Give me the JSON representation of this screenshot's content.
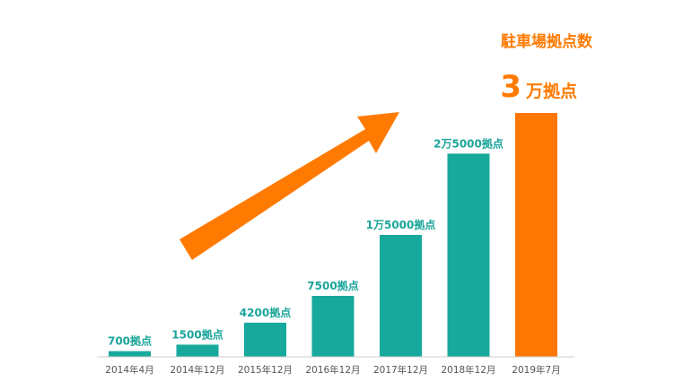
{
  "chart_data": {
    "type": "bar",
    "title": "駐車場拠点数",
    "highlight": {
      "number": "3",
      "unit": "万拠点"
    },
    "categories": [
      "2014年4月",
      "2014年12月",
      "2015年12月",
      "2016年12月",
      "2017年12月",
      "2018年12月",
      "2019年7月"
    ],
    "values": [
      700,
      1500,
      4200,
      7500,
      15000,
      25000,
      30000
    ],
    "data_labels": [
      "700拠点",
      "1500拠点",
      "4200拠点",
      "7500拠点",
      "1万5000拠点",
      "2万5000拠点",
      ""
    ],
    "ylim": [
      0,
      30000
    ],
    "grid": false,
    "colors": {
      "bar": "#18a99d",
      "highlight_bar": "#ff7700",
      "label": "#1aa59a",
      "arrow": "#ff7a00"
    }
  }
}
